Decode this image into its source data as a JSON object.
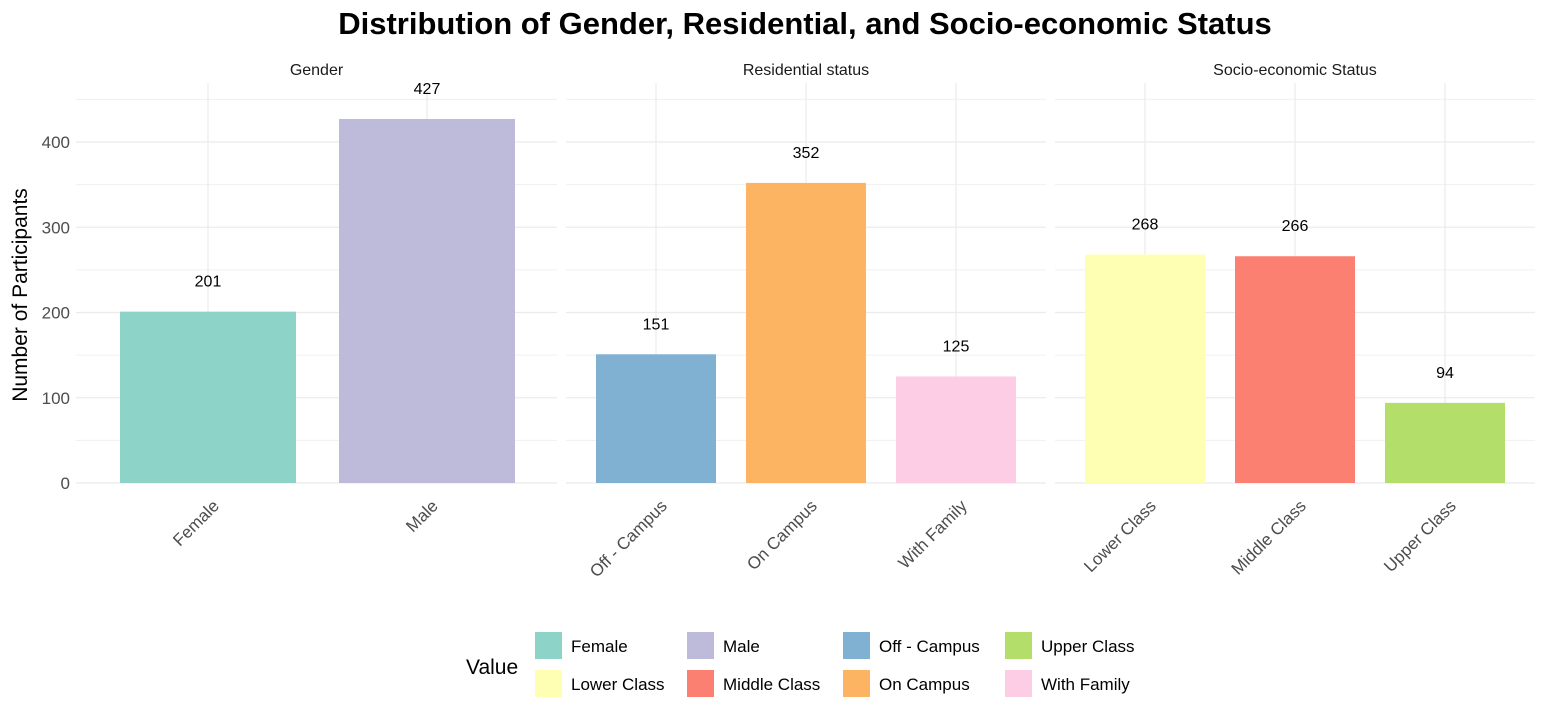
{
  "chart_data": {
    "type": "bar",
    "title": "Distribution of Gender, Residential, and Socio-economic Status",
    "ylabel": "Number of Participants",
    "ylim": [
      0,
      450
    ],
    "yticks": [
      0,
      100,
      200,
      300,
      400
    ],
    "grid": true,
    "facets": [
      {
        "name": "Gender",
        "categories": [
          "Female",
          "Male"
        ],
        "values": [
          201,
          427
        ]
      },
      {
        "name": "Residential status",
        "categories": [
          "Off - Campus",
          "On Campus",
          "With Family"
        ],
        "values": [
          151,
          352,
          125
        ]
      },
      {
        "name": "Socio-economic Status",
        "categories": [
          "Lower Class",
          "Middle Class",
          "Upper Class"
        ],
        "values": [
          268,
          266,
          94
        ]
      }
    ],
    "colors": {
      "Female": "#8dd3c7",
      "Male": "#bebada",
      "Off - Campus": "#80b1d3",
      "On Campus": "#fdb462",
      "With Family": "#fccde5",
      "Lower Class": "#ffffb3",
      "Middle Class": "#fb8072",
      "Upper Class": "#b3de69"
    },
    "legend": {
      "title": "Value",
      "placement": "bottom",
      "rows": [
        [
          "Female",
          "Male",
          "Off - Campus",
          "Upper Class"
        ],
        [
          "Lower Class",
          "Middle Class",
          "On Campus",
          "With Family"
        ]
      ]
    }
  }
}
